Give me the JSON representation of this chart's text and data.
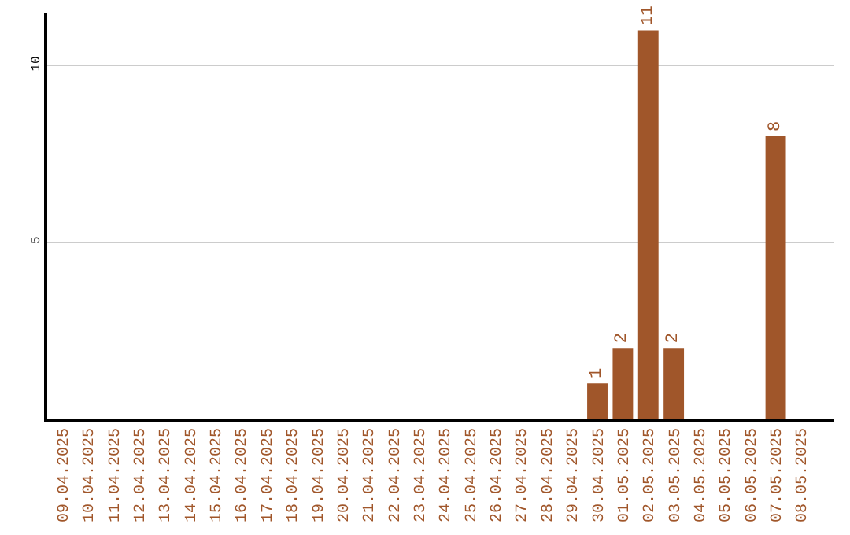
{
  "chart_data": {
    "type": "bar",
    "categories": [
      "09.04.2025",
      "10.04.2025",
      "11.04.2025",
      "12.04.2025",
      "13.04.2025",
      "14.04.2025",
      "15.04.2025",
      "16.04.2025",
      "17.04.2025",
      "18.04.2025",
      "19.04.2025",
      "20.04.2025",
      "21.04.2025",
      "22.04.2025",
      "23.04.2025",
      "24.04.2025",
      "25.04.2025",
      "26.04.2025",
      "27.04.2025",
      "28.04.2025",
      "29.04.2025",
      "30.04.2025",
      "01.05.2025",
      "02.05.2025",
      "03.05.2025",
      "04.05.2025",
      "05.05.2025",
      "06.05.2025",
      "07.05.2025",
      "08.05.2025"
    ],
    "values": [
      0,
      0,
      0,
      0,
      0,
      0,
      0,
      0,
      0,
      0,
      0,
      0,
      0,
      0,
      0,
      0,
      0,
      0,
      0,
      0,
      0,
      1,
      2,
      11,
      2,
      0,
      0,
      0,
      8,
      0
    ],
    "value_labels": [
      null,
      null,
      null,
      null,
      null,
      null,
      null,
      null,
      null,
      null,
      null,
      null,
      null,
      null,
      null,
      null,
      null,
      null,
      null,
      null,
      null,
      "1",
      "2",
      "11",
      "2",
      null,
      null,
      null,
      "8",
      null
    ],
    "color": "#a0562a",
    "ylim": [
      0,
      11.5
    ],
    "yticks": [
      5,
      10
    ],
    "grid": "y"
  }
}
